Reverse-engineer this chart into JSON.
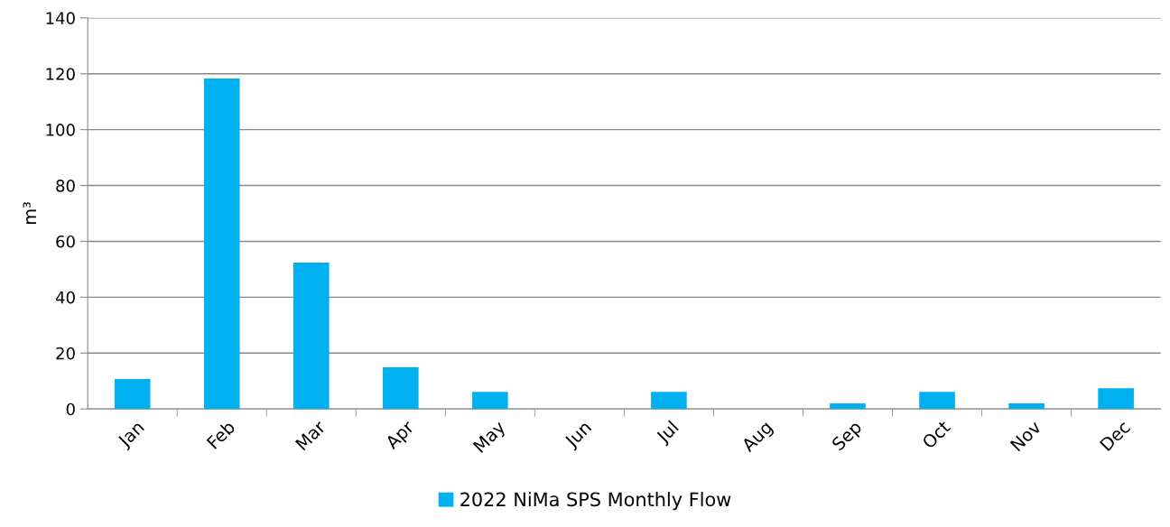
{
  "chart_data": {
    "type": "bar",
    "ylabel": "m³",
    "categories": [
      "Jan",
      "Feb",
      "Mar",
      "Apr",
      "May",
      "Jun",
      "Jul",
      "Aug",
      "Sep",
      "Oct",
      "Nov",
      "Dec"
    ],
    "series": [
      {
        "name": "2022 NiMa SPS Monthly Flow",
        "color": "#00b0f0",
        "values": [
          10.7,
          118.3,
          52.4,
          14.9,
          6.1,
          0,
          6.1,
          0,
          2,
          6.1,
          2,
          7.4
        ]
      }
    ],
    "ylim": [
      0,
      140
    ],
    "yticks": [
      0,
      20,
      40,
      60,
      80,
      100,
      120,
      140
    ],
    "grid": "y",
    "legend": "bottom"
  }
}
